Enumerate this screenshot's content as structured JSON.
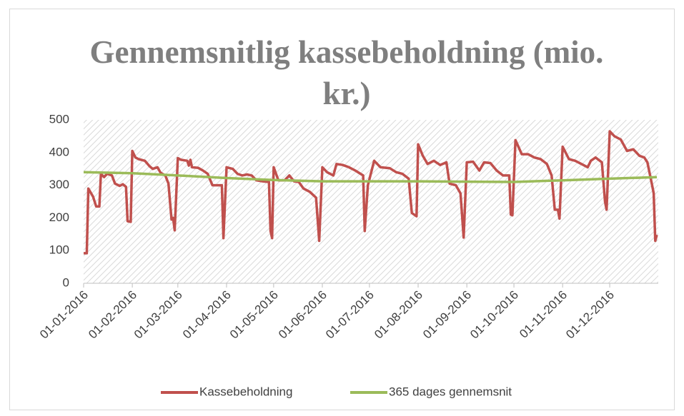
{
  "chart_data": {
    "type": "line",
    "title": "Gennemsnitlig kassebeholdning (mio. kr.)",
    "xlim": [
      "01-01-2016",
      "31-12-2016"
    ],
    "xticks": [
      "01-01-2016",
      "01-02-2016",
      "01-03-2016",
      "01-04-2016",
      "01-05-2016",
      "01-06-2016",
      "01-07-2016",
      "01-08-2016",
      "01-09-2016",
      "01-10-2016",
      "01-11-2016",
      "01-12-2016"
    ],
    "ylim": [
      0,
      500
    ],
    "yticks": [
      0,
      100,
      200,
      300,
      400,
      500
    ],
    "grid": false,
    "legend": "bottom",
    "series": [
      {
        "name": "Kassebeholdning",
        "color": "#c0504d",
        "x": [
          "01-01-2016",
          "03-01-2016",
          "04-01-2016",
          "07-01-2016",
          "09-01-2016",
          "11-01-2016",
          "12-01-2016",
          "14-01-2016",
          "16-01-2016",
          "19-01-2016",
          "21-01-2016",
          "24-01-2016",
          "26-01-2016",
          "28-01-2016",
          "29-01-2016",
          "31-01-2016",
          "01-02-2016",
          "03-02-2016",
          "05-02-2016",
          "09-02-2016",
          "12-02-2016",
          "14-02-2016",
          "17-02-2016",
          "19-02-2016",
          "22-02-2016",
          "24-02-2016",
          "26-02-2016",
          "27-02-2016",
          "28-02-2016",
          "01-03-2016",
          "03-03-2016",
          "07-03-2016",
          "08-03-2016",
          "09-03-2016",
          "10-03-2016",
          "14-03-2016",
          "17-03-2016",
          "20-03-2016",
          "23-03-2016",
          "27-03-2016",
          "29-03-2016",
          "30-03-2016",
          "01-04-2016",
          "05-04-2016",
          "08-04-2016",
          "11-04-2016",
          "14-04-2016",
          "17-04-2016",
          "20-04-2016",
          "24-04-2016",
          "28-04-2016",
          "29-04-2016",
          "30-04-2016",
          "01-05-2016",
          "04-05-2016",
          "08-05-2016",
          "11-05-2016",
          "14-05-2016",
          "17-05-2016",
          "20-05-2016",
          "24-05-2016",
          "28-05-2016",
          "30-05-2016",
          "01-06-2016",
          "04-06-2016",
          "08-06-2016",
          "10-06-2016",
          "14-06-2016",
          "18-06-2016",
          "22-06-2016",
          "27-06-2016",
          "28-06-2016",
          "30-06-2016",
          "04-07-2016",
          "08-07-2016",
          "14-07-2016",
          "18-07-2016",
          "22-07-2016",
          "26-07-2016",
          "28-07-2016",
          "31-07-2016",
          "01-08-2016",
          "04-08-2016",
          "07-08-2016",
          "11-08-2016",
          "15-08-2016",
          "19-08-2016",
          "21-08-2016",
          "25-08-2016",
          "28-08-2016",
          "30-08-2016",
          "01-09-2016",
          "05-09-2016",
          "09-09-2016",
          "12-09-2016",
          "16-09-2016",
          "20-09-2016",
          "24-09-2016",
          "28-09-2016",
          "29-09-2016",
          "30-09-2016",
          "02-10-2016",
          "06-10-2016",
          "10-10-2016",
          "14-10-2016",
          "18-10-2016",
          "22-10-2016",
          "25-10-2016",
          "27-10-2016",
          "29-10-2016",
          "30-10-2016",
          "01-11-2016",
          "05-11-2016",
          "09-11-2016",
          "13-11-2016",
          "17-11-2016",
          "19-11-2016",
          "22-11-2016",
          "26-11-2016",
          "28-11-2016",
          "29-11-2016",
          "01-12-2016",
          "04-12-2016",
          "08-12-2016",
          "12-12-2016",
          "16-12-2016",
          "20-12-2016",
          "23-12-2016",
          "25-12-2016",
          "28-12-2016",
          "29-12-2016",
          "30-12-2016",
          "31-12-2016"
        ],
        "values": [
          92,
          92,
          290,
          265,
          235,
          235,
          335,
          325,
          335,
          330,
          305,
          298,
          303,
          295,
          190,
          188,
          405,
          385,
          380,
          375,
          358,
          350,
          355,
          338,
          330,
          305,
          195,
          200,
          162,
          383,
          378,
          375,
          360,
          378,
          355,
          353,
          345,
          335,
          300,
          300,
          300,
          138,
          355,
          350,
          335,
          330,
          333,
          330,
          315,
          312,
          310,
          160,
          138,
          355,
          315,
          315,
          330,
          312,
          310,
          290,
          280,
          262,
          130,
          355,
          340,
          330,
          365,
          362,
          355,
          345,
          330,
          160,
          300,
          375,
          355,
          352,
          340,
          335,
          320,
          215,
          205,
          425,
          390,
          365,
          375,
          362,
          370,
          305,
          300,
          275,
          140,
          370,
          372,
          345,
          370,
          368,
          345,
          330,
          330,
          210,
          208,
          438,
          395,
          395,
          385,
          380,
          365,
          330,
          225,
          225,
          198,
          418,
          380,
          375,
          365,
          355,
          375,
          385,
          370,
          250,
          225,
          465,
          450,
          440,
          405,
          410,
          390,
          385,
          370,
          300,
          275,
          130,
          148
        ]
      },
      {
        "name": "365 dages gennemsnit",
        "color": "#9bbb59",
        "x": [
          "01-01-2016",
          "01-02-2016",
          "01-03-2016",
          "01-04-2016",
          "01-05-2016",
          "01-06-2016",
          "01-07-2016",
          "01-08-2016",
          "01-09-2016",
          "01-10-2016",
          "01-11-2016",
          "01-12-2016",
          "31-12-2016"
        ],
        "values": [
          340,
          337,
          330,
          322,
          316,
          312,
          312,
          312,
          311,
          310,
          315,
          320,
          325
        ]
      }
    ]
  }
}
